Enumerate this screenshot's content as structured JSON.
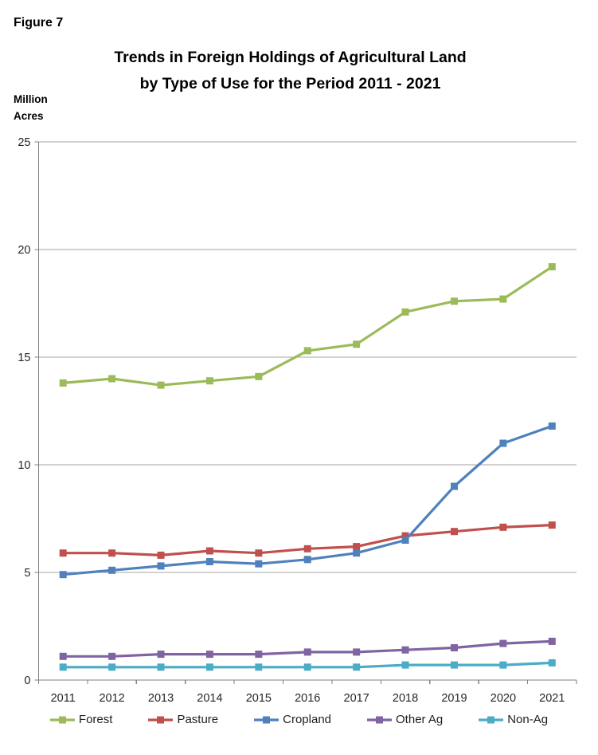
{
  "figure_label": "Figure 7",
  "title_line1": "Trends in Foreign Holdings of Agricultural Land",
  "title_line2": "by Type of Use for the Period 2011 - 2021",
  "y_axis_label_line1": "Million",
  "y_axis_label_line2": "Acres",
  "colors": {
    "gridline": "#a6a6a6",
    "axis": "#808080",
    "tick_text": "#262626",
    "title_text": "#000000"
  },
  "chart_data": {
    "type": "line",
    "title": "Trends in Foreign Holdings of Agricultural Land by Type of Use for the Period 2011 - 2021",
    "ylabel": "Million Acres",
    "xlabel": "",
    "x": [
      "2011",
      "2012",
      "2013",
      "2014",
      "2015",
      "2016",
      "2017",
      "2018",
      "2019",
      "2020",
      "2021"
    ],
    "series": [
      {
        "name": "Forest",
        "color": "#9bbb59",
        "values": [
          13.8,
          14.0,
          13.7,
          13.9,
          14.1,
          15.3,
          15.6,
          17.1,
          17.6,
          17.7,
          19.2
        ]
      },
      {
        "name": "Pasture",
        "color": "#c0504d",
        "values": [
          5.9,
          5.9,
          5.8,
          6.0,
          5.9,
          6.1,
          6.2,
          6.7,
          6.9,
          7.1,
          7.2
        ]
      },
      {
        "name": "Cropland",
        "color": "#4f81bd",
        "values": [
          4.9,
          5.1,
          5.3,
          5.5,
          5.4,
          5.6,
          5.9,
          6.5,
          9.0,
          11.0,
          11.8
        ]
      },
      {
        "name": "Other Ag",
        "color": "#8064a2",
        "values": [
          1.1,
          1.1,
          1.2,
          1.2,
          1.2,
          1.3,
          1.3,
          1.4,
          1.5,
          1.7,
          1.8
        ]
      },
      {
        "name": "Non-Ag",
        "color": "#4bacc6",
        "values": [
          0.6,
          0.6,
          0.6,
          0.6,
          0.6,
          0.6,
          0.6,
          0.7,
          0.7,
          0.7,
          0.8
        ]
      }
    ],
    "ylim": [
      0,
      25
    ],
    "y_ticks": [
      0,
      5,
      10,
      15,
      20,
      25
    ],
    "grid": true,
    "legend_position": "bottom",
    "marker": "square"
  }
}
